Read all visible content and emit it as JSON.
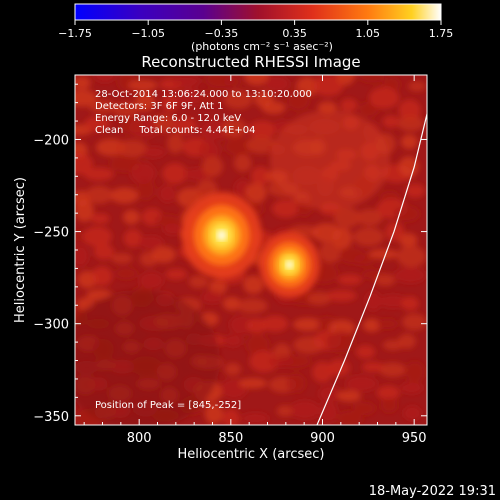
{
  "chart_data": {
    "type": "heatmap",
    "title": "Reconstructed RHESSI Image",
    "xlabel": "Heliocentric X (arcsec)",
    "ylabel": "Heliocentric Y (arcsec)",
    "xlim": [
      765,
      957
    ],
    "ylim": [
      -355,
      -165
    ],
    "x_ticks": [
      800,
      850,
      900,
      950
    ],
    "y_ticks": [
      -200,
      -250,
      -300,
      -350
    ],
    "colorbar": {
      "label": "(photons cm⁻² s⁻¹ asec⁻²)",
      "range": [
        -1.75,
        1.75
      ],
      "ticks": [
        "-1.75",
        "-1.05",
        "-0.35",
        "0.35",
        "1.05",
        "1.75"
      ],
      "colormap": "rainbow-hot"
    },
    "sources": [
      {
        "x": 845,
        "y": -252,
        "peak": 1.75
      },
      {
        "x": 882,
        "y": -268,
        "peak": 1.25
      }
    ],
    "limb_curve": [
      {
        "x": 897,
        "y": -355
      },
      {
        "x": 912,
        "y": -320
      },
      {
        "x": 926,
        "y": -285
      },
      {
        "x": 939,
        "y": -250
      },
      {
        "x": 950,
        "y": -215
      },
      {
        "x": 958,
        "y": -182
      }
    ],
    "info_lines": [
      "28-Oct-2014 13:06:24.000 to 13:10:20.000",
      "Detectors: 3F 6F 9F, Att 1",
      "Energy Range: 6.0 - 12.0 keV",
      "Clean     Total counts: 4.44E+04"
    ],
    "peak_note": "Position of Peak = [845,-252]",
    "timestamp": "18-May-2022 19:31"
  }
}
